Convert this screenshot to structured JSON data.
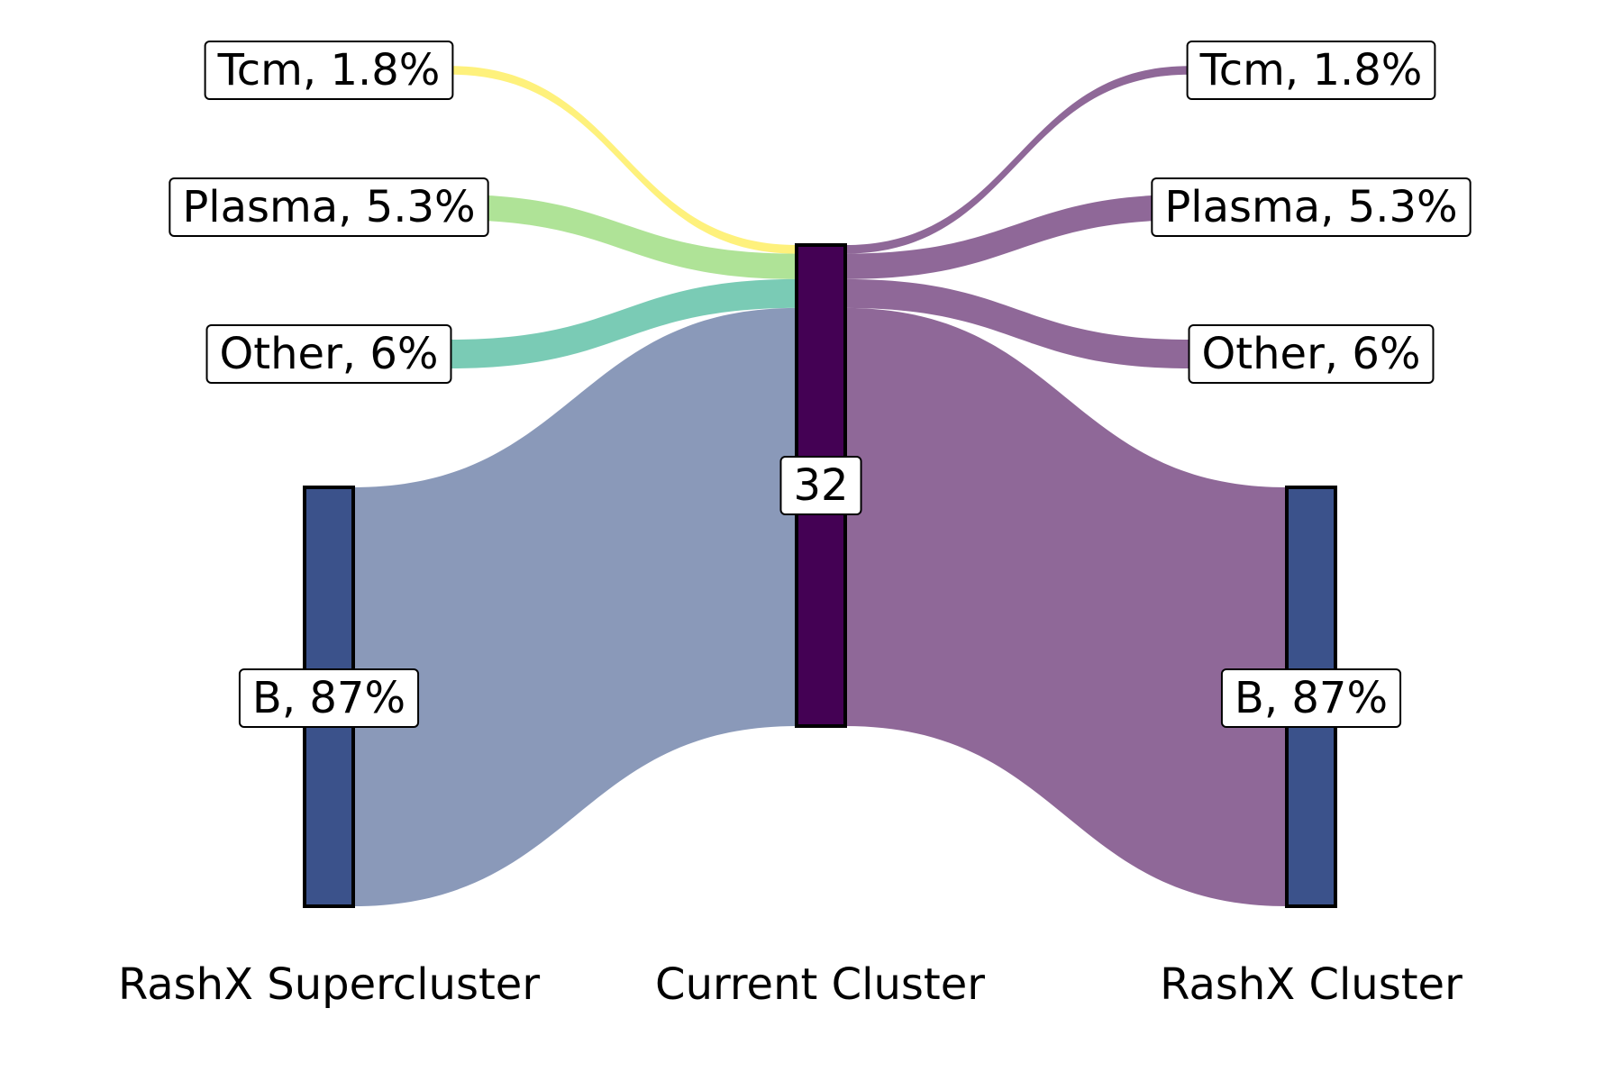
{
  "chart_data": {
    "type": "sankey",
    "axes": [
      {
        "label": "RashX Supercluster"
      },
      {
        "label": "Current Cluster"
      },
      {
        "label": "RashX Cluster"
      }
    ],
    "left_nodes": [
      {
        "name": "Tcm",
        "pct": 1.8,
        "label": "Tcm, 1.8%",
        "color": "#fde725"
      },
      {
        "name": "Plasma",
        "pct": 5.3,
        "label": "Plasma, 5.3%",
        "color": "#7ad151"
      },
      {
        "name": "Other",
        "pct": 6,
        "label": "Other, 6%",
        "color": "#22a884"
      },
      {
        "name": "B",
        "pct": 87,
        "label": "B, 87%",
        "color": "#3b528b"
      }
    ],
    "center_node": {
      "label": "32",
      "color": "#440154"
    },
    "right_nodes": [
      {
        "name": "Tcm",
        "pct": 1.8,
        "label": "Tcm, 1.8%",
        "color": "#440154"
      },
      {
        "name": "Plasma",
        "pct": 5.3,
        "label": "Plasma, 5.3%",
        "color": "#440154"
      },
      {
        "name": "Other",
        "pct": 6,
        "label": "Other, 6%",
        "color": "#440154"
      },
      {
        "name": "B",
        "pct": 87,
        "label": "B, 87%",
        "color": "#3b528b"
      }
    ],
    "right_flow_color": "#8f6898",
    "left_b_flow_color": "#8a99b9"
  }
}
